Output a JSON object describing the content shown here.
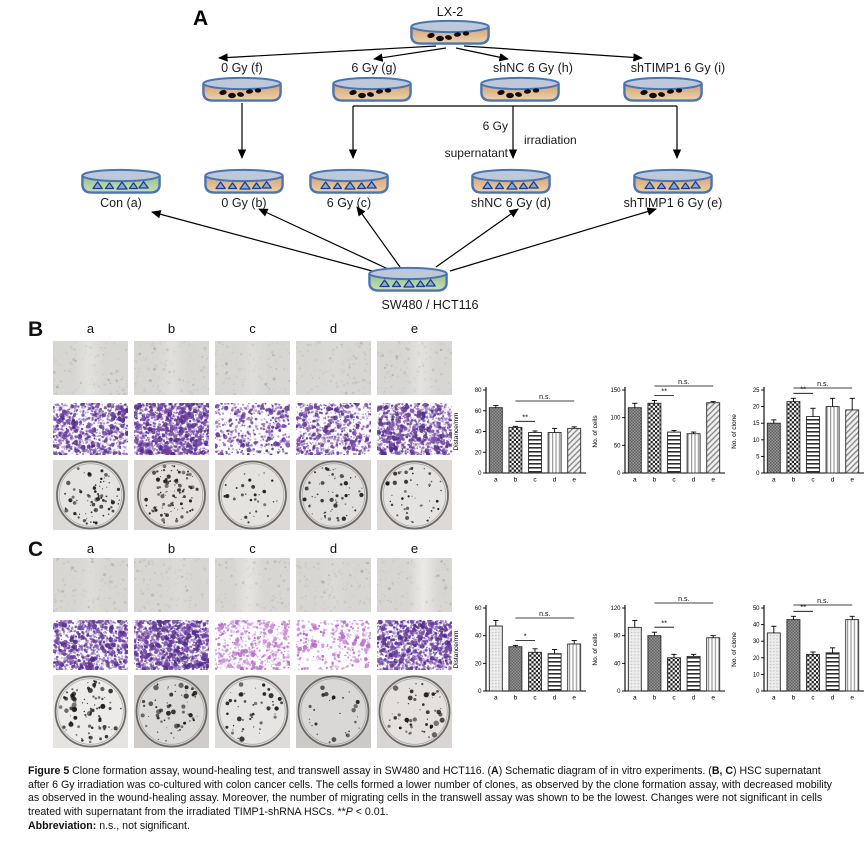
{
  "figure": {
    "panel_a": {
      "label": "A",
      "top_dish_label": "LX-2",
      "row1_labels": [
        "0 Gy (f)",
        "6 Gy (g)",
        "shNC 6 Gy (h)",
        "shTIMP1 6 Gy (i)"
      ],
      "flow_labels": {
        "dose": "6 Gy",
        "supernatant": "supernatant",
        "irradiation": "irradiation"
      },
      "row2_labels": [
        "Con (a)",
        "0 Gy (b)",
        "6 Gy (c)",
        "shNC 6 Gy (d)",
        "shTIMP1 6 Gy (e)"
      ],
      "bottom_dish_label": "SW480 / HCT116"
    },
    "panel_b": {
      "label": "B",
      "columns": [
        "a",
        "b",
        "c",
        "d",
        "e"
      ],
      "wound_row": {
        "assay": "wound-healing",
        "scratch": [
          0.3,
          0.25,
          0.2,
          0.08,
          0.35
        ],
        "scratch_x": [
          0.48,
          0.5,
          0.5,
          0.5,
          0.58
        ]
      },
      "transwell_row": {
        "assay": "transwell",
        "density": [
          0.5,
          0.78,
          0.2,
          0.35,
          0.55
        ],
        "tone": [
          "purple",
          "purple",
          "purple",
          "purple",
          "purple"
        ]
      },
      "clone_row": {
        "assay": "clone-formation",
        "colonies": [
          75,
          100,
          30,
          60,
          50
        ],
        "bg": [
          "#dcdad7",
          "#d8d5d2",
          "#dbd8d5",
          "#d5d2cf",
          "#dcd9d6"
        ],
        "max_dot": 1.7
      }
    },
    "panel_c": {
      "label": "C",
      "columns": [
        "a",
        "b",
        "c",
        "d",
        "e"
      ],
      "wound_row": {
        "assay": "wound-healing",
        "scratch": [
          0.18,
          0.12,
          0.4,
          0.1,
          0.55
        ],
        "scratch_x": [
          0.5,
          0.6,
          0.45,
          0.5,
          0.62
        ]
      },
      "transwell_row": {
        "assay": "transwell",
        "density": [
          0.55,
          0.75,
          0.22,
          0.12,
          0.65
        ],
        "tone": [
          "purple",
          "purple",
          "pink",
          "pink",
          "purple"
        ]
      },
      "clone_row": {
        "assay": "clone-formation",
        "colonies": [
          80,
          60,
          45,
          28,
          50
        ],
        "bg": [
          "#e6e4e1",
          "#cfccc9",
          "#dedbd8",
          "#cccac7",
          "#d8d5d2"
        ],
        "max_dot": 2.3
      }
    },
    "caption": {
      "segments": [
        {
          "text": "Figure 5 ",
          "bold": true
        },
        {
          "text": "Clone formation assay, wound-healing test, and transwell assay in SW480 and HCT116. (",
          "bold": false
        },
        {
          "text": "A",
          "bold": true
        },
        {
          "text": ") Schematic diagram of in vitro experiments. (",
          "bold": false
        },
        {
          "text": "B, C",
          "bold": true
        },
        {
          "text": ") HSC supernatant after 6 Gy irradiation was co-cultured with colon cancer cells. The cells formed a lower number of clones, as observed by the clone formation assay, with decreased mobility as observed in the wound-healing assay. Moreover, the number of migrating cells in the transwell assay was shown to be the lowest. Changes were not significant in cells treated with supernatant from the irradiated TIMP1-shRNA HSCs. **",
          "bold": false
        },
        {
          "text": "P",
          "italic": true
        },
        {
          "text": " < 0.01.",
          "bold": false
        }
      ],
      "abbreviation_segments": [
        {
          "text": "Abbreviation: ",
          "bold": true
        },
        {
          "text": "n.s., not significant.",
          "bold": false
        }
      ]
    }
  },
  "chart_data": [
    {
      "panel": "B",
      "type": "bar",
      "ylabel": "Distance/mm",
      "categories": [
        "a",
        "b",
        "c",
        "d",
        "e"
      ],
      "values": [
        63,
        44,
        39,
        39,
        43
      ],
      "errors": [
        2,
        1,
        1.5,
        4,
        1.5
      ],
      "ylim": [
        0,
        80
      ],
      "yticks": [
        0,
        20,
        40,
        60,
        80
      ],
      "annotations": [
        {
          "label": "**",
          "from": "b",
          "to": "c"
        },
        {
          "label": "n.s.",
          "from": "b",
          "to": "e"
        }
      ],
      "bar_patterns": [
        "dark-check",
        "checkerboard",
        "h-stripes",
        "v-stripes",
        "diag-stripes"
      ]
    },
    {
      "panel": "B",
      "type": "bar",
      "ylabel": "No. of cells",
      "categories": [
        "a",
        "b",
        "c",
        "d",
        "e"
      ],
      "values": [
        118,
        126,
        74,
        71,
        127
      ],
      "errors": [
        8,
        5,
        3,
        3,
        2
      ],
      "ylim": [
        0,
        150
      ],
      "yticks": [
        0,
        50,
        100,
        150
      ],
      "annotations": [
        {
          "label": "**",
          "from": "b",
          "to": "c"
        },
        {
          "label": "n.s.",
          "from": "b",
          "to": "e"
        }
      ],
      "bar_patterns": [
        "dark-check",
        "checkerboard",
        "h-stripes",
        "v-stripes",
        "diag-stripes"
      ]
    },
    {
      "panel": "B",
      "type": "bar",
      "ylabel": "No. of clone",
      "categories": [
        "a",
        "b",
        "c",
        "d",
        "e"
      ],
      "values": [
        15,
        21.5,
        17,
        20,
        19
      ],
      "errors": [
        1,
        1,
        2.5,
        2.5,
        3.5
      ],
      "ylim": [
        0,
        25
      ],
      "yticks": [
        0,
        5,
        10,
        15,
        20,
        25
      ],
      "annotations": [
        {
          "label": "**",
          "from": "b",
          "to": "c"
        },
        {
          "label": "n.s.",
          "from": "b",
          "to": "e"
        }
      ],
      "bar_patterns": [
        "dark-check",
        "checkerboard",
        "h-stripes",
        "v-stripes",
        "diag-stripes"
      ]
    },
    {
      "panel": "C",
      "type": "bar",
      "ylabel": "Distance/mm",
      "categories": [
        "a",
        "b",
        "c",
        "d",
        "e"
      ],
      "values": [
        47,
        32,
        28,
        27,
        34
      ],
      "errors": [
        4,
        1,
        2.5,
        3,
        2.5
      ],
      "ylim": [
        0,
        60
      ],
      "yticks": [
        0,
        20,
        40,
        60
      ],
      "annotations": [
        {
          "label": "*",
          "from": "b",
          "to": "c"
        },
        {
          "label": "n.s.",
          "from": "b",
          "to": "e"
        }
      ],
      "bar_patterns": [
        "dots",
        "dark-check",
        "checkerboard",
        "h-stripes",
        "v-stripes"
      ]
    },
    {
      "panel": "C",
      "type": "bar",
      "ylabel": "No. of cells",
      "categories": [
        "a",
        "b",
        "c",
        "d",
        "e"
      ],
      "values": [
        92,
        80,
        48,
        50,
        77
      ],
      "errors": [
        10,
        5,
        5,
        3,
        3
      ],
      "ylim": [
        0,
        120
      ],
      "yticks": [
        0,
        40,
        80,
        120
      ],
      "annotations": [
        {
          "label": "**",
          "from": "b",
          "to": "c"
        },
        {
          "label": "n.s.",
          "from": "b",
          "to": "e"
        }
      ],
      "bar_patterns": [
        "dots",
        "dark-check",
        "checkerboard",
        "h-stripes",
        "v-stripes"
      ]
    },
    {
      "panel": "C",
      "type": "bar",
      "ylabel": "No. of clone",
      "categories": [
        "a",
        "b",
        "c",
        "d",
        "e"
      ],
      "values": [
        35,
        43,
        22,
        23,
        43
      ],
      "errors": [
        4,
        2,
        1.5,
        3,
        2
      ],
      "ylim": [
        0,
        50
      ],
      "yticks": [
        0,
        10,
        20,
        30,
        40,
        50
      ],
      "annotations": [
        {
          "label": "**",
          "from": "b",
          "to": "c"
        },
        {
          "label": "n.s.",
          "from": "b",
          "to": "e"
        }
      ],
      "bar_patterns": [
        "dots",
        "dark-check",
        "checkerboard",
        "h-stripes",
        "v-stripes"
      ]
    }
  ]
}
